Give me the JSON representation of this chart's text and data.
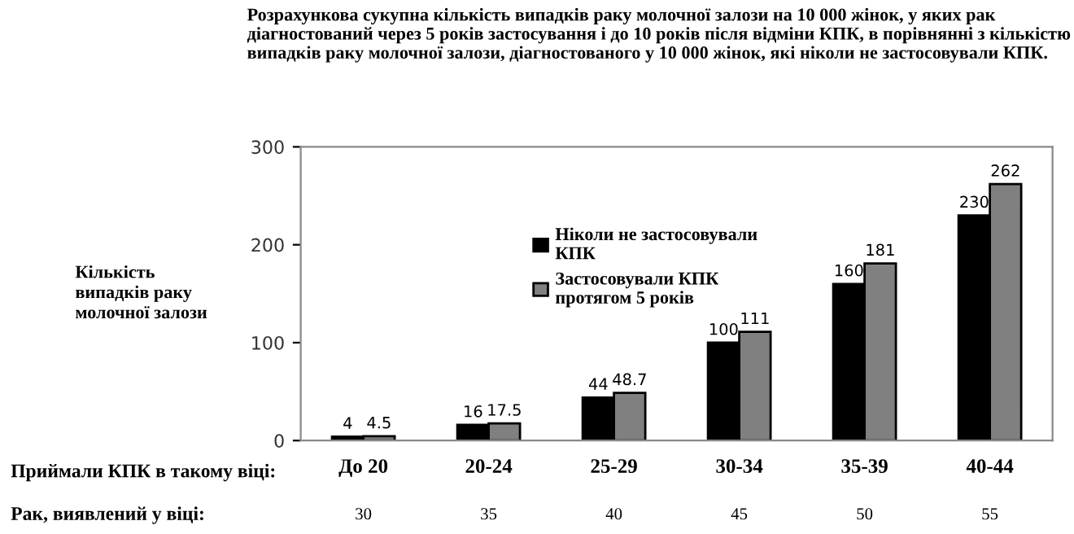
{
  "chart_data": {
    "type": "bar",
    "title": "Розрахункова сукупна кількість випадків раку молочної залози на 10 000 жінок, у яких рак діагностований через 5 років застосування і до 10 років після відміни КПК, в порівнянні з кількістю випадків раку молочної залози, діагностованого у 10 000 жінок, які ніколи не застосовували КПК.",
    "xlabel": "Приймали КПК в такому віці:",
    "ylabel": "Кількість\nвипадків раку\nмолочної залози",
    "categories": [
      "До 20",
      "20-24",
      "25-29",
      "30-34",
      "35-39",
      "40-44"
    ],
    "series": [
      {
        "name": "Ніколи не застосовували\nКПК",
        "color": "#000000",
        "values": [
          4,
          16,
          44,
          100,
          160,
          230
        ]
      },
      {
        "name": "Застосовували КПК\nпротягом 5 років",
        "color": "#808080",
        "values": [
          4.5,
          17.5,
          48.7,
          111,
          181,
          262
        ]
      }
    ],
    "ylim": [
      0,
      300
    ],
    "yticks": [
      0,
      100,
      200,
      300
    ],
    "grid": false,
    "legend": "top left",
    "data_labels": true,
    "annotations": [
      "Рак, виявлений у віці:",
      "30",
      "35",
      "40",
      "45",
      "50",
      "55"
    ]
  }
}
